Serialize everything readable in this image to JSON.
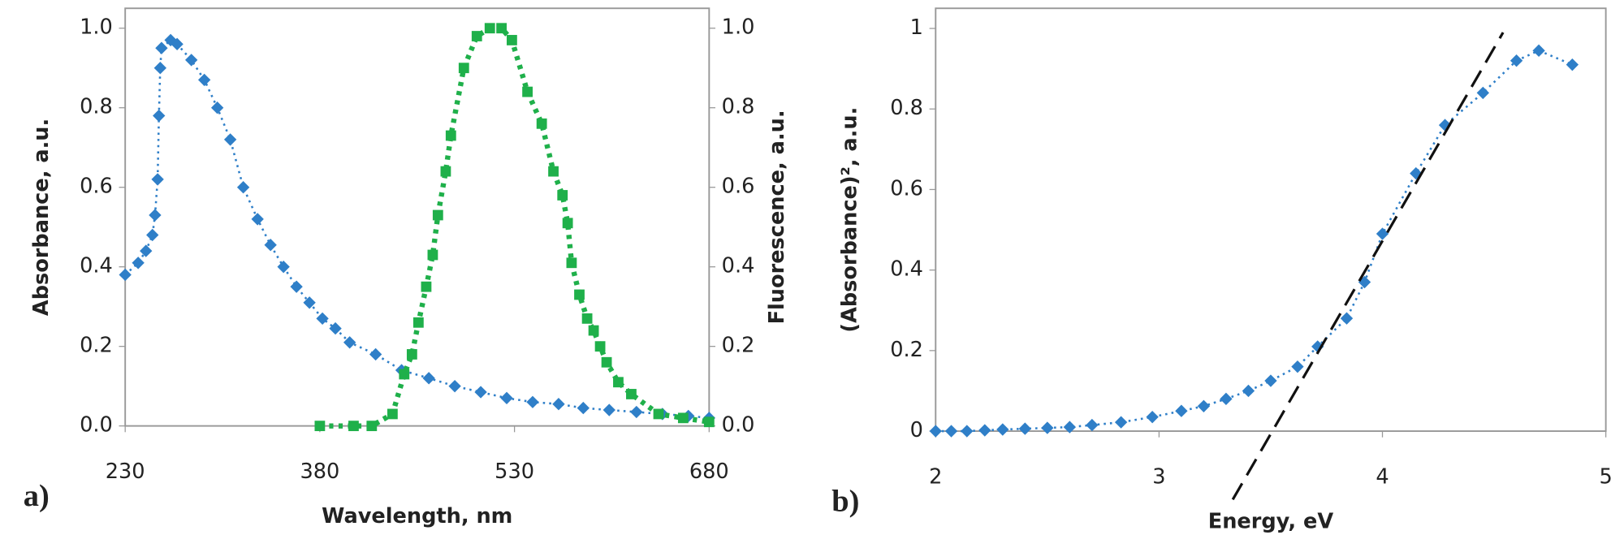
{
  "chart_data": [
    {
      "type": "line",
      "panel_label": "a)",
      "x_label": "Wavelength, nm",
      "y_label": "Absorbance, a.u.",
      "y2_label": "Fluorescence, a.u.",
      "xlim": [
        230,
        680
      ],
      "xticks": [
        230,
        380,
        530,
        680
      ],
      "ylim": [
        0,
        1.05
      ],
      "yticks": [
        {
          "value": 0,
          "label": "0.0"
        },
        {
          "value": 0.2,
          "label": "0.2"
        },
        {
          "value": 0.4,
          "label": "0.4"
        },
        {
          "value": 0.6,
          "label": "0.6"
        },
        {
          "value": 0.8,
          "label": "0.8"
        },
        {
          "value": 1,
          "label": "1.0"
        }
      ],
      "y2lim": [
        0,
        1.05
      ],
      "y2ticks": [
        {
          "value": 0,
          "label": "0.0"
        },
        {
          "value": 0.2,
          "label": "0.2"
        },
        {
          "value": 0.4,
          "label": "0.4"
        },
        {
          "value": 0.6,
          "label": "0.6"
        },
        {
          "value": 0.8,
          "label": "0.8"
        },
        {
          "value": 1,
          "label": "1.0"
        }
      ],
      "series": [
        {
          "color": "#2f7fc8",
          "marker": "diamond",
          "line_style": "dotted",
          "x": [
            230,
            240,
            246,
            251,
            253,
            255,
            256,
            257,
            258,
            265,
            270,
            281,
            291,
            301,
            311,
            321,
            332,
            342,
            352,
            362,
            372,
            382,
            392,
            403,
            423,
            443,
            464,
            484,
            504,
            524,
            544,
            564,
            583,
            603,
            624,
            644,
            664,
            680
          ],
          "values": [
            0.38,
            0.41,
            0.44,
            0.48,
            0.53,
            0.62,
            0.78,
            0.9,
            0.95,
            0.97,
            0.96,
            0.92,
            0.87,
            0.8,
            0.72,
            0.6,
            0.52,
            0.455,
            0.4,
            0.35,
            0.31,
            0.27,
            0.245,
            0.21,
            0.18,
            0.14,
            0.12,
            0.1,
            0.085,
            0.07,
            0.06,
            0.055,
            0.045,
            0.04,
            0.035,
            0.03,
            0.025,
            0.02
          ]
        },
        {
          "color": "#1fb04a",
          "marker": "square",
          "line_style": "dotted-thick",
          "axis": "y2",
          "x": [
            380,
            406,
            420,
            436,
            445,
            451,
            456,
            462,
            467,
            471,
            477,
            481,
            491,
            501,
            511,
            520,
            528,
            540,
            551,
            560,
            567,
            571,
            574,
            580,
            586,
            591,
            596,
            601,
            610,
            620,
            641,
            660,
            680
          ],
          "values": [
            0,
            0,
            0,
            0.03,
            0.13,
            0.18,
            0.26,
            0.35,
            0.43,
            0.53,
            0.64,
            0.73,
            0.9,
            0.98,
            1.0,
            1.0,
            0.97,
            0.84,
            0.76,
            0.64,
            0.58,
            0.51,
            0.41,
            0.33,
            0.27,
            0.24,
            0.2,
            0.16,
            0.11,
            0.08,
            0.03,
            0.02,
            0.01
          ]
        }
      ]
    },
    {
      "type": "line",
      "panel_label": "b)",
      "x_label": "Energy, eV",
      "y_label": "(Absorbance)², a.u.",
      "xlim": [
        2,
        5
      ],
      "xticks": [
        2,
        3,
        4,
        5
      ],
      "ylim": [
        0,
        1.05
      ],
      "yticks": [
        0,
        0.2,
        0.4,
        0.6,
        0.8,
        1
      ],
      "series": [
        {
          "color": "#2f7fc8",
          "marker": "diamond",
          "line_style": "dotted",
          "x": [
            2.0,
            2.07,
            2.14,
            2.22,
            2.3,
            2.4,
            2.5,
            2.6,
            2.7,
            2.83,
            2.97,
            3.1,
            3.2,
            3.3,
            3.4,
            3.5,
            3.62,
            3.71,
            3.84,
            3.92,
            4.0,
            4.15,
            4.28,
            4.45,
            4.6,
            4.7,
            4.85
          ],
          "values": [
            0,
            0,
            0,
            0.002,
            0.004,
            0.006,
            0.008,
            0.01,
            0.015,
            0.022,
            0.035,
            0.05,
            0.062,
            0.08,
            0.1,
            0.125,
            0.16,
            0.21,
            0.28,
            0.37,
            0.49,
            0.64,
            0.76,
            0.84,
            0.92,
            0.945,
            0.91
          ]
        },
        {
          "color": "#111111",
          "marker": "none",
          "line_style": "dashed",
          "x": [
            3.33,
            4.54
          ],
          "values": [
            -0.17,
            0.99
          ]
        }
      ]
    }
  ]
}
